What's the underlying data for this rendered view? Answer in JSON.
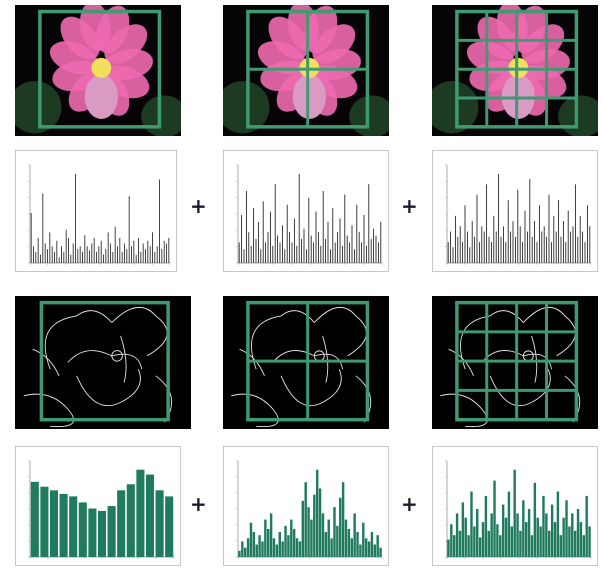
{
  "figure": {
    "operators": [
      "+",
      "+",
      "+",
      "+"
    ],
    "grid_levels": [
      1,
      2,
      4
    ]
  },
  "colors": {
    "grid": "#3f9a72",
    "flower_petal": "#f06ab0",
    "flower_center": "#f2e05a",
    "leaves": "#1d3a22",
    "edge_lines": "#e6e6e6",
    "hist_color": "#1a1a1a",
    "hist_shape": "#1f7a5e"
  },
  "chart_data": [
    {
      "type": "bar",
      "id": "color-hist-level-1",
      "values": [
        180,
        60,
        40,
        90,
        30,
        250,
        70,
        50,
        110,
        60,
        40,
        80,
        20,
        60,
        40,
        120,
        90,
        30,
        70,
        320,
        50,
        60,
        40,
        100,
        60,
        45,
        70,
        90,
        40,
        60,
        80,
        30,
        50,
        110,
        70,
        40,
        130,
        60,
        90,
        40,
        70,
        50,
        240,
        60,
        80,
        30,
        90,
        40,
        70,
        50,
        80,
        60,
        110,
        40,
        60,
        300,
        50,
        80,
        70,
        90
      ]
    },
    {
      "type": "bar",
      "id": "color-hist-level-2",
      "values": [
        60,
        140,
        40,
        210,
        90,
        50,
        160,
        70,
        120,
        40,
        180,
        60,
        90,
        150,
        50,
        230,
        80,
        60,
        110,
        40,
        170,
        90,
        60,
        130,
        50,
        260,
        70,
        100,
        40,
        190,
        80,
        60,
        150,
        90,
        50,
        210,
        70,
        120,
        40,
        160,
        60,
        90,
        130,
        50,
        200,
        80,
        60,
        110,
        40,
        170,
        90,
        60,
        140,
        50,
        230,
        70,
        100,
        80,
        60,
        120
      ]
    },
    {
      "type": "bar",
      "id": "color-hist-level-3",
      "values": [
        40,
        60,
        30,
        90,
        50,
        70,
        40,
        110,
        60,
        30,
        80,
        50,
        130,
        40,
        70,
        60,
        150,
        50,
        40,
        90,
        60,
        170,
        50,
        70,
        40,
        120,
        60,
        80,
        50,
        140,
        70,
        40,
        100,
        60,
        160,
        50,
        80,
        40,
        110,
        60,
        70,
        50,
        130,
        40,
        90,
        60,
        120,
        50,
        80,
        40,
        100,
        60,
        70,
        150,
        50,
        90,
        60,
        40,
        110,
        70
      ]
    },
    {
      "type": "bar",
      "id": "shape-hist-level-1",
      "values": [
        62,
        58,
        55,
        52,
        50,
        45,
        40,
        38,
        42,
        55,
        60,
        72,
        68,
        55,
        50
      ]
    },
    {
      "type": "bar",
      "id": "shape-hist-level-2",
      "values": [
        10,
        25,
        15,
        30,
        55,
        40,
        20,
        35,
        25,
        60,
        45,
        70,
        30,
        20,
        40,
        25,
        50,
        35,
        60,
        45,
        30,
        25,
        90,
        120,
        80,
        60,
        100,
        140,
        110,
        70,
        40,
        60,
        30,
        80,
        50,
        95,
        120,
        60,
        45,
        30,
        70,
        40,
        20,
        55,
        30,
        25,
        40,
        20,
        35,
        15
      ]
    },
    {
      "type": "bar",
      "id": "shape-hist-level-3",
      "values": [
        8,
        15,
        10,
        20,
        12,
        25,
        18,
        10,
        30,
        14,
        22,
        9,
        16,
        28,
        12,
        20,
        35,
        15,
        10,
        24,
        18,
        30,
        14,
        40,
        20,
        12,
        26,
        16,
        22,
        10,
        34,
        18,
        14,
        28,
        20,
        12,
        24,
        16,
        30,
        10,
        18,
        26,
        14,
        20,
        12,
        22,
        16,
        10,
        28,
        14
      ]
    }
  ]
}
